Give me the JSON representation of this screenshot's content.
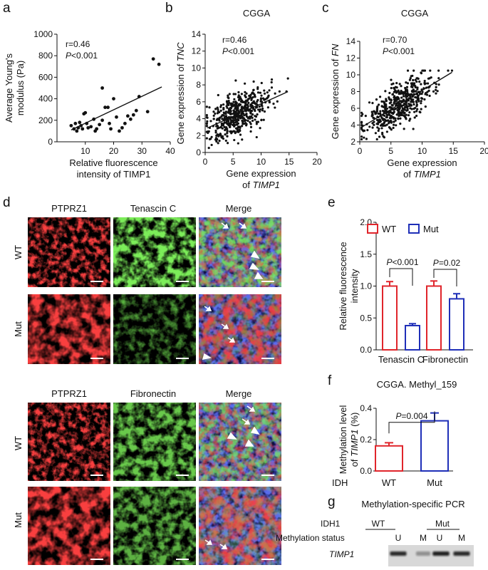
{
  "panels": {
    "a": {
      "label": "a"
    },
    "b": {
      "label": "b",
      "title": "CGGA"
    },
    "c": {
      "label": "c",
      "title": "CGGA"
    },
    "d": {
      "label": "d"
    },
    "e": {
      "label": "e"
    },
    "f": {
      "label": "f",
      "title": "CGGA. Methyl_159"
    },
    "g": {
      "label": "g",
      "title": "Methylation-specific PCR"
    }
  },
  "colors": {
    "wt": "#e0252b",
    "mut": "#1f2fb8",
    "red_stain": "#e01818",
    "green_stain": "#2fbf1f",
    "blue_stain": "#1a2bd0"
  },
  "chart_data": [
    {
      "id": "a",
      "type": "scatter",
      "xlabel_line1": "Relative fluorescence",
      "xlabel_line2": "intensity of TIMP1",
      "ylabel_line1": "Average Young's",
      "ylabel_line2": "modulus (Pa)",
      "xlim": [
        0,
        40
      ],
      "ylim": [
        0,
        1000
      ],
      "xticks": [
        "10",
        "20",
        "30",
        "40"
      ],
      "yticks": [
        "0",
        "200",
        "400",
        "600",
        "800",
        "1000"
      ],
      "stat_r": "r=0.46",
      "stat_p_italic": "P",
      "stat_p_rest": "<0.001",
      "fit": [
        [
          5,
          110
        ],
        [
          37,
          510
        ]
      ],
      "points": [
        [
          5,
          150
        ],
        [
          6,
          120
        ],
        [
          6.5,
          170
        ],
        [
          7,
          100
        ],
        [
          7.5,
          130
        ],
        [
          8,
          180
        ],
        [
          8.5,
          150
        ],
        [
          9,
          120
        ],
        [
          9.5,
          260
        ],
        [
          10,
          270
        ],
        [
          10.5,
          170
        ],
        [
          11,
          130
        ],
        [
          12,
          140
        ],
        [
          13,
          210
        ],
        [
          13.5,
          100
        ],
        [
          14,
          120
        ],
        [
          15,
          160
        ],
        [
          16,
          200
        ],
        [
          17,
          320
        ],
        [
          18,
          320
        ],
        [
          19,
          120
        ],
        [
          20,
          400
        ],
        [
          21,
          230
        ],
        [
          22,
          100
        ],
        [
          23,
          130
        ],
        [
          24,
          170
        ],
        [
          25,
          240
        ],
        [
          26,
          210
        ],
        [
          27,
          250
        ],
        [
          28,
          290
        ],
        [
          29,
          420
        ],
        [
          32,
          280
        ],
        [
          34,
          770
        ],
        [
          36,
          720
        ],
        [
          16,
          500
        ],
        [
          18.5,
          170
        ]
      ]
    },
    {
      "id": "b",
      "type": "scatter",
      "xlabel_line1": "Gene expression",
      "xlabel_line2_prefix": "of ",
      "xlabel_line2_gene": "TIMP1",
      "ylabel_prefix": "Gene expression of ",
      "ylabel_gene": "TNC",
      "xlim": [
        0,
        20
      ],
      "ylim": [
        0,
        14
      ],
      "xticks": [
        "0",
        "5",
        "10",
        "15",
        "20"
      ],
      "yticks": [
        "0",
        "2",
        "4",
        "6",
        "8",
        "10",
        "12",
        "14"
      ],
      "stat_r": "r=0.46",
      "stat_p_italic": "P",
      "stat_p_rest": "<0.001",
      "fit": [
        [
          0.4,
          2.9
        ],
        [
          14.8,
          7.2
        ]
      ],
      "n": 500,
      "slope": 0.3,
      "intercept": 2.8,
      "noise": 1.4
    },
    {
      "id": "c",
      "type": "scatter",
      "xlabel_line1": "Gene expression",
      "xlabel_line2_prefix": "of ",
      "xlabel_line2_gene": "TIMP1",
      "ylabel_prefix": "Gene expression of ",
      "ylabel_gene": "FN",
      "xlim": [
        0,
        20
      ],
      "ylim": [
        2,
        14
      ],
      "xticks": [
        "0",
        "5",
        "10",
        "15",
        "20"
      ],
      "yticks": [
        "2",
        "4",
        "6",
        "8",
        "10",
        "12",
        "14"
      ],
      "stat_r": "r=0.70",
      "stat_p_italic": "P",
      "stat_p_rest": "<0.001",
      "fit": [
        [
          0.2,
          3.7
        ],
        [
          14.8,
          10.3
        ]
      ],
      "n": 500,
      "slope": 0.45,
      "intercept": 3.6,
      "noise": 1.2
    },
    {
      "id": "e",
      "type": "bar",
      "ylabel_line1": "Relative fluorescence",
      "ylabel_line2": "intensity",
      "ylim": [
        0,
        2.0
      ],
      "yticks": [
        "0.0",
        "0.5",
        "1.0",
        "1.5",
        "2.0"
      ],
      "categories": [
        "Tenascin C",
        "Fibronectin"
      ],
      "legend": [
        "WT",
        "Mut"
      ],
      "series": [
        {
          "name": "WT",
          "values": [
            1.0,
            1.0
          ],
          "errors": [
            0.07,
            0.08
          ]
        },
        {
          "name": "Mut",
          "values": [
            0.38,
            0.8
          ],
          "errors": [
            0.03,
            0.08
          ]
        }
      ],
      "comparisons": [
        {
          "p_italic": "P",
          "p_rest": "<0.001"
        },
        {
          "p_italic": "P",
          "p_rest": "=0.02"
        }
      ]
    },
    {
      "id": "f",
      "type": "bar",
      "ylabel_line1": "Methylation level",
      "ylabel_line2_prefix": "of ",
      "ylabel_line2_gene": "TIMP1",
      "ylabel_line2_suffix": " (%)",
      "ylim": [
        0,
        0.4
      ],
      "yticks": [
        "0.0",
        "0.2",
        "0.4"
      ],
      "xlabel_prefix": "IDH",
      "categories": [
        "WT",
        "Mut"
      ],
      "values": [
        0.16,
        0.32
      ],
      "errors": [
        0.02,
        0.05
      ],
      "comparison": {
        "p_italic": "P",
        "p_rest": "=0.004"
      }
    }
  ],
  "micrographs": {
    "row1_headers": [
      "PTPRZ1",
      "Tenascin C",
      "Merge"
    ],
    "row2_headers": [
      "PTPRZ1",
      "Fibronectin",
      "Merge"
    ],
    "row_labels": [
      "WT",
      "Mut",
      "WT",
      "Mut"
    ]
  },
  "gel": {
    "idh_label": "IDH1",
    "wt": "WT",
    "mut": "Mut",
    "status_label": "Methylation status",
    "lanes": [
      "U",
      "M",
      "U",
      "M"
    ],
    "gene_label": "TIMP1",
    "band_intensity": [
      0.85,
      0.35,
      0.9,
      0.85
    ]
  }
}
